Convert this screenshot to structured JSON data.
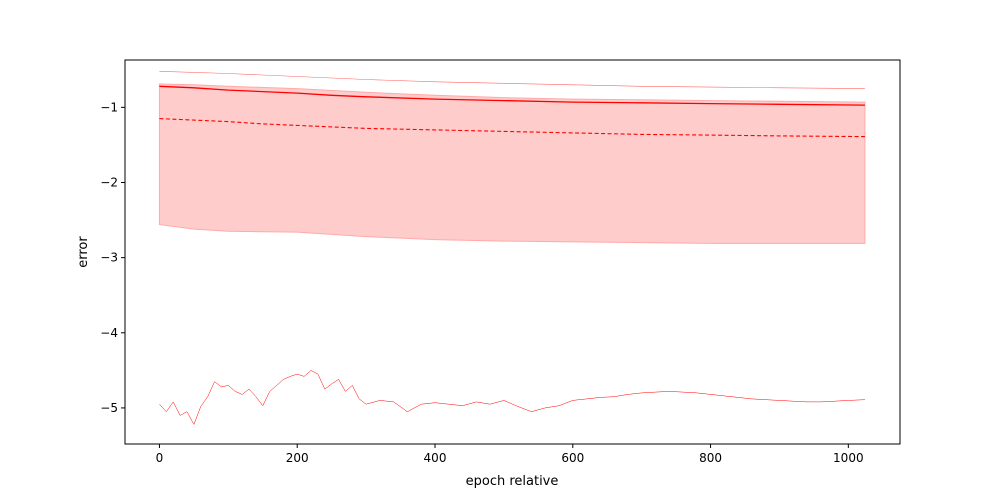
{
  "chart_data": {
    "type": "line",
    "title": "",
    "xlabel": "epoch relative",
    "ylabel": "error",
    "xlim": [
      -50,
      1075
    ],
    "ylim": [
      -5.48,
      -0.37
    ],
    "x_ticks": [
      0,
      200,
      400,
      600,
      800,
      1000
    ],
    "y_ticks": [
      -1,
      -2,
      -3,
      -4,
      -5
    ],
    "grid": false,
    "legend": "none",
    "color": "#ff0000",
    "band": {
      "fill": "#ffcccc",
      "x": [
        0,
        50,
        100,
        200,
        300,
        400,
        500,
        600,
        700,
        800,
        900,
        1024
      ],
      "upper": [
        -0.69,
        -0.7,
        -0.72,
        -0.75,
        -0.8,
        -0.84,
        -0.87,
        -0.89,
        -0.9,
        -0.91,
        -0.92,
        -0.93
      ],
      "lower": [
        -2.56,
        -2.62,
        -2.65,
        -2.66,
        -2.72,
        -2.76,
        -2.78,
        -2.79,
        -2.8,
        -2.81,
        -2.81,
        -2.81
      ]
    },
    "series": [
      {
        "style": "solid",
        "x": [
          0,
          50,
          100,
          150,
          200,
          250,
          300,
          400,
          500,
          600,
          700,
          800,
          900,
          1024
        ],
        "y": [
          -0.72,
          -0.74,
          -0.77,
          -0.79,
          -0.81,
          -0.84,
          -0.86,
          -0.89,
          -0.91,
          -0.93,
          -0.94,
          -0.95,
          -0.96,
          -0.97
        ]
      },
      {
        "style": "dashed",
        "x": [
          0,
          50,
          100,
          150,
          200,
          250,
          300,
          400,
          500,
          600,
          700,
          800,
          900,
          1024
        ],
        "y": [
          -1.15,
          -1.17,
          -1.19,
          -1.22,
          -1.24,
          -1.26,
          -1.28,
          -1.3,
          -1.32,
          -1.34,
          -1.36,
          -1.37,
          -1.38,
          -1.39
        ]
      },
      {
        "style": "thin-upper",
        "x": [
          0,
          100,
          200,
          300,
          400,
          500,
          600,
          700,
          800,
          900,
          1024
        ],
        "y": [
          -0.52,
          -0.55,
          -0.59,
          -0.63,
          -0.66,
          -0.68,
          -0.7,
          -0.72,
          -0.73,
          -0.74,
          -0.75
        ]
      },
      {
        "style": "thin-lower",
        "x": [
          0,
          10,
          20,
          30,
          40,
          50,
          60,
          70,
          80,
          90,
          100,
          110,
          120,
          130,
          140,
          150,
          160,
          170,
          180,
          190,
          200,
          210,
          220,
          230,
          240,
          250,
          260,
          270,
          280,
          290,
          300,
          320,
          340,
          360,
          380,
          400,
          420,
          440,
          460,
          480,
          500,
          520,
          540,
          560,
          580,
          600,
          620,
          640,
          660,
          680,
          700,
          720,
          740,
          760,
          780,
          800,
          820,
          840,
          860,
          880,
          900,
          920,
          940,
          960,
          980,
          1000,
          1024
        ],
        "y": [
          -4.95,
          -5.05,
          -4.92,
          -5.1,
          -5.05,
          -5.22,
          -4.98,
          -4.85,
          -4.65,
          -4.72,
          -4.7,
          -4.78,
          -4.82,
          -4.75,
          -4.85,
          -4.97,
          -4.78,
          -4.7,
          -4.62,
          -4.58,
          -4.55,
          -4.58,
          -4.5,
          -4.55,
          -4.75,
          -4.68,
          -4.62,
          -4.78,
          -4.7,
          -4.88,
          -4.95,
          -4.9,
          -4.92,
          -5.05,
          -4.95,
          -4.93,
          -4.95,
          -4.97,
          -4.92,
          -4.95,
          -4.9,
          -4.98,
          -5.05,
          -5.0,
          -4.97,
          -4.9,
          -4.88,
          -4.86,
          -4.85,
          -4.82,
          -4.8,
          -4.79,
          -4.78,
          -4.79,
          -4.8,
          -4.82,
          -4.84,
          -4.86,
          -4.88,
          -4.89,
          -4.9,
          -4.91,
          -4.92,
          -4.92,
          -4.91,
          -4.9,
          -4.89
        ]
      }
    ]
  }
}
